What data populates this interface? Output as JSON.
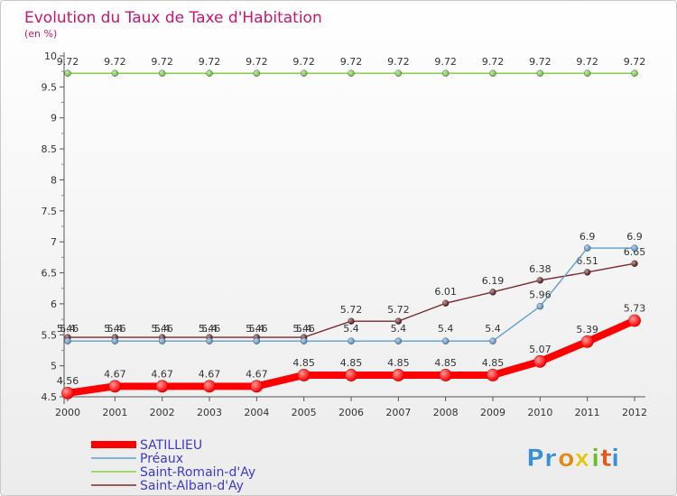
{
  "title": "Evolution du Taux de Taxe d'Habitation",
  "subtitle": "(en %)",
  "logo": {
    "letters": [
      "P",
      "r",
      "o",
      "x",
      "i",
      "t",
      "i"
    ],
    "colors": [
      "#3a8fd6",
      "#3a8fd6",
      "#e08a1e",
      "#e0c91e",
      "#6dbb2f",
      "#e05a1e",
      "#3a8fd6"
    ]
  },
  "chart_data": {
    "type": "line",
    "title": "Evolution du Taux de Taxe d'Habitation",
    "ylabel": "(en %)",
    "xlabel": "",
    "x": [
      "2000",
      "2001",
      "2002",
      "2003",
      "2004",
      "2005",
      "2006",
      "2007",
      "2008",
      "2009",
      "2010",
      "2011",
      "2012"
    ],
    "ylim": [
      4.5,
      10
    ],
    "yticks": [
      "4.5",
      "5",
      "5.5",
      "6",
      "6.5",
      "7",
      "7.5",
      "8",
      "8.5",
      "9",
      "9.5",
      "10"
    ],
    "grid": false,
    "legend_position": "bottom-left",
    "series": [
      {
        "name": "SATILLIEU",
        "color": "#ff0000",
        "values": [
          4.56,
          4.67,
          4.67,
          4.67,
          4.67,
          4.85,
          4.85,
          4.85,
          4.85,
          4.85,
          5.07,
          5.39,
          5.73
        ],
        "labels": [
          "4.56",
          "4.67",
          "4.67",
          "4.67",
          "4.67",
          "4.85",
          "4.85",
          "4.85",
          "4.85",
          "4.85",
          "5.07",
          "5.39",
          "5.73"
        ]
      },
      {
        "name": "Préaux",
        "color": "#5f9fd0",
        "values": [
          5.4,
          5.4,
          5.4,
          5.4,
          5.4,
          5.4,
          5.4,
          5.4,
          5.4,
          5.4,
          5.96,
          6.9,
          6.9
        ],
        "labels": [
          "5.4",
          "5.4",
          "5.4",
          "5.4",
          "5.4",
          "5.4",
          "5.4",
          "5.4",
          "5.4",
          "5.4",
          "5.96",
          "6.9",
          "6.9"
        ]
      },
      {
        "name": "Saint-Romain-d'Ay",
        "color": "#86d04c",
        "values": [
          9.72,
          9.72,
          9.72,
          9.72,
          9.72,
          9.72,
          9.72,
          9.72,
          9.72,
          9.72,
          9.72,
          9.72,
          9.72
        ],
        "labels": [
          "9.72",
          "9.72",
          "9.72",
          "9.72",
          "9.72",
          "9.72",
          "9.72",
          "9.72",
          "9.72",
          "9.72",
          "9.72",
          "9.72",
          "9.72"
        ]
      },
      {
        "name": "Saint-Alban-d'Ay",
        "color": "#7a2a2a",
        "values": [
          5.46,
          5.46,
          5.46,
          5.46,
          5.46,
          5.46,
          5.72,
          5.72,
          6.01,
          6.19,
          6.38,
          6.51,
          6.65
        ],
        "labels": [
          "5.46",
          "5.46",
          "5.46",
          "5.46",
          "5.46",
          "5.46",
          "5.72",
          "5.72",
          "6.01",
          "6.19",
          "6.38",
          "6.51",
          "6.65"
        ]
      }
    ]
  }
}
